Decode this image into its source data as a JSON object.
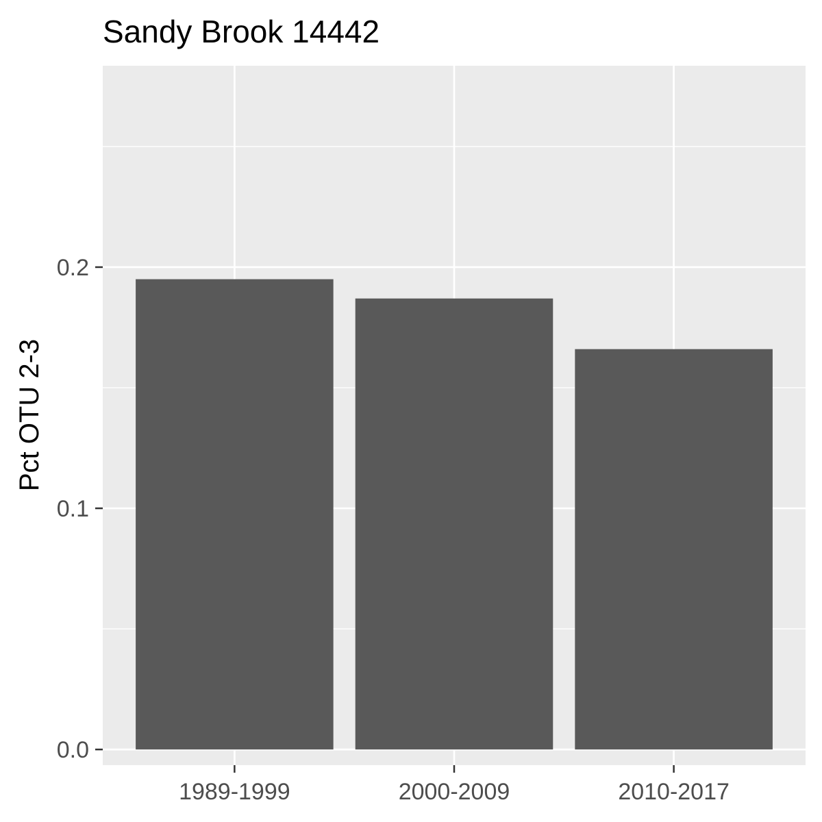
{
  "chart_data": {
    "type": "bar",
    "title": "Sandy Brook 14442",
    "xlabel": "",
    "ylabel": "Pct OTU 2-3",
    "categories": [
      "1989-1999",
      "2000-2009",
      "2010-2017"
    ],
    "values": [
      0.195,
      0.187,
      0.166
    ],
    "ylim": [
      -0.0065,
      0.2835
    ],
    "yticks": [
      0.0,
      0.1,
      0.2
    ],
    "ytick_labels": [
      "0.0",
      "0.1",
      "0.2"
    ],
    "grid": true,
    "colors": {
      "panel_background": "#ebebeb",
      "grid_major": "#ffffff",
      "bar_fill": "#595959",
      "tick_color": "#333333"
    }
  }
}
